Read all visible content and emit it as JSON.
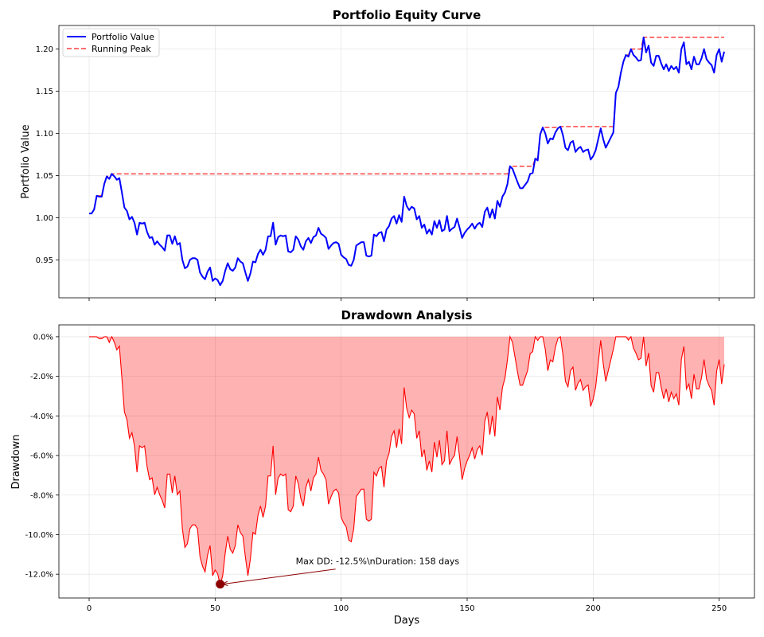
{
  "chart_data": [
    {
      "type": "line",
      "title": "Portfolio Equity Curve",
      "xlabel": "",
      "ylabel": "Portfolio Value",
      "xlim": [
        -12,
        264
      ],
      "ylim": [
        0.905,
        1.228
      ],
      "x_ticks": [
        0,
        50,
        100,
        150,
        200,
        250
      ],
      "y_ticks": [
        0.95,
        1.0,
        1.05,
        1.1,
        1.15,
        1.2
      ],
      "y_tick_labels": [
        "0.95",
        "1.00",
        "1.05",
        "1.10",
        "1.15",
        "1.20"
      ],
      "grid": true,
      "legend": "upper-left",
      "series": [
        {
          "name": "Portfolio Value",
          "color": "#0000ff",
          "style": "solid",
          "x_start": 0,
          "values": [
            1.005,
            1.005,
            1.01,
            1.026,
            1.025,
            1.025,
            1.04,
            1.049,
            1.046,
            1.052,
            1.049,
            1.045,
            1.047,
            1.03,
            1.012,
            1.008,
            0.998,
            1.001,
            0.994,
            0.98,
            0.994,
            0.993,
            0.994,
            0.983,
            0.976,
            0.977,
            0.968,
            0.972,
            0.968,
            0.965,
            0.961,
            0.979,
            0.979,
            0.969,
            0.978,
            0.968,
            0.97,
            0.95,
            0.94,
            0.942,
            0.95,
            0.952,
            0.952,
            0.95,
            0.935,
            0.93,
            0.927,
            0.936,
            0.941,
            0.925,
            0.928,
            0.926,
            0.92,
            0.925,
            0.937,
            0.946,
            0.939,
            0.937,
            0.941,
            0.952,
            0.948,
            0.946,
            0.935,
            0.925,
            0.934,
            0.948,
            0.947,
            0.957,
            0.962,
            0.956,
            0.962,
            0.978,
            0.978,
            0.994,
            0.968,
            0.977,
            0.979,
            0.978,
            0.979,
            0.96,
            0.959,
            0.962,
            0.978,
            0.974,
            0.966,
            0.962,
            0.972,
            0.976,
            0.97,
            0.977,
            0.979,
            0.988,
            0.981,
            0.979,
            0.976,
            0.963,
            0.967,
            0.97,
            0.971,
            0.969,
            0.956,
            0.953,
            0.951,
            0.944,
            0.943,
            0.95,
            0.967,
            0.969,
            0.971,
            0.971,
            0.955,
            0.954,
            0.955,
            0.98,
            0.978,
            0.982,
            0.983,
            0.972,
            0.986,
            0.99,
            0.999,
            1.002,
            0.993,
            1.003,
            0.995,
            1.025,
            1.014,
            1.009,
            1.013,
            1.011,
            0.998,
            1.002,
            0.988,
            0.992,
            0.981,
            0.986,
            0.98,
            0.996,
            0.988,
            0.997,
            0.984,
            0.986,
            1.002,
            0.984,
            0.987,
            0.989,
            0.999,
            0.988,
            0.976,
            0.982,
            0.986,
            0.989,
            0.993,
            0.987,
            0.992,
            0.994,
            0.989,
            1.007,
            1.012,
            1.0,
            1.01,
            0.999,
            1.02,
            1.013,
            1.025,
            1.03,
            1.04,
            1.061,
            1.058,
            1.05,
            1.042,
            1.035,
            1.035,
            1.039,
            1.043,
            1.052,
            1.053,
            1.07,
            1.068,
            1.099,
            1.107,
            1.1,
            1.088,
            1.094,
            1.093,
            1.101,
            1.106,
            1.108,
            1.098,
            1.083,
            1.08,
            1.089,
            1.091,
            1.078,
            1.082,
            1.084,
            1.078,
            1.08,
            1.081,
            1.069,
            1.073,
            1.08,
            1.093,
            1.106,
            1.093,
            1.083,
            1.089,
            1.095,
            1.101,
            1.148,
            1.155,
            1.172,
            1.185,
            1.193,
            1.191,
            1.2,
            1.193,
            1.19,
            1.186,
            1.187,
            1.214,
            1.196,
            1.204,
            1.184,
            1.18,
            1.192,
            1.192,
            1.183,
            1.176,
            1.182,
            1.174,
            1.18,
            1.176,
            1.179,
            1.172,
            1.2,
            1.208,
            1.182,
            1.185,
            1.176,
            1.191,
            1.182,
            1.182,
            1.189,
            1.2,
            1.188,
            1.184,
            1.181,
            1.172,
            1.193,
            1.2,
            1.185,
            1.197
          ]
        },
        {
          "name": "Running Peak",
          "color": "#ff0000",
          "style": "dashed",
          "x_start": 0,
          "values": []
        }
      ]
    },
    {
      "type": "area",
      "title": "Drawdown Analysis",
      "xlabel": "Days",
      "ylabel": "Drawdown",
      "xlim": [
        -12,
        264
      ],
      "ylim": [
        -13.2,
        0.6
      ],
      "x_ticks": [
        0,
        50,
        100,
        150,
        200,
        250
      ],
      "x_tick_labels": [
        "0",
        "50",
        "100",
        "150",
        "200",
        "250"
      ],
      "y_ticks": [
        0,
        -2,
        -4,
        -6,
        -8,
        -10,
        -12
      ],
      "y_tick_labels": [
        "0.0%",
        "-2.0%",
        "-4.0%",
        "-6.0%",
        "-8.0%",
        "-10.0%",
        "-12.0%"
      ],
      "grid": true,
      "fill_color": "#ff0000",
      "series_color": "#ff0000",
      "annotation": {
        "text": "Max DD: -12.5%\\nDuration: 158 days",
        "point": [
          52,
          -12.5
        ],
        "text_at": [
          82,
          -11.5
        ],
        "marker_color": "#8b0000"
      }
    }
  ]
}
